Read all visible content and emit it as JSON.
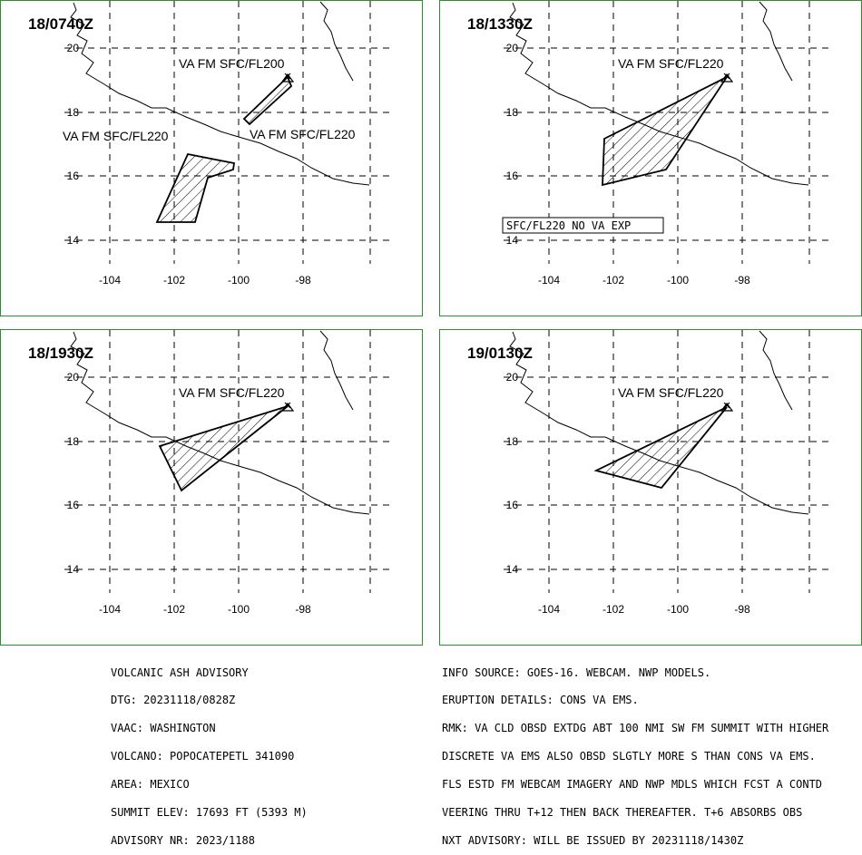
{
  "panels": [
    {
      "time": "18/0740Z",
      "labels": [
        "VA FM SFC/FL200",
        "VA FM SFC/FL220",
        "VA FM SFC/FL220"
      ],
      "boxed_label": ""
    },
    {
      "time": "18/1330Z",
      "labels": [
        "VA FM SFC/FL220"
      ],
      "boxed_label": "SFC/FL220 NO VA EXP"
    },
    {
      "time": "18/1930Z",
      "labels": [
        "VA FM SFC/FL220"
      ],
      "boxed_label": ""
    },
    {
      "time": "19/0130Z",
      "labels": [
        "VA FM SFC/FL220"
      ],
      "boxed_label": ""
    }
  ],
  "axes": {
    "lon_ticks": [
      "-104",
      "-102",
      "-100",
      "-98"
    ],
    "lat_ticks": [
      "20",
      "18",
      "16",
      "14"
    ]
  },
  "advisory_left": [
    "VOLCANIC ASH ADVISORY",
    "DTG: 20231118/0828Z",
    "VAAC: WASHINGTON",
    "VOLCANO: POPOCATEPETL 341090",
    "AREA: MEXICO",
    "SUMMIT ELEV: 17693 FT (5393 M)",
    "ADVISORY NR: 2023/1188"
  ],
  "advisory_right": [
    "INFO SOURCE: GOES-16. WEBCAM. NWP MODELS.",
    "ERUPTION DETAILS: CONS VA EMS.",
    "RMK: VA CLD OBSD EXTDG ABT 100 NMI SW FM SUMMIT WITH HIGHER",
    "DISCRETE VA EMS ALSO OBSD SLGTLY MORE S THAN CONS VA EMS.",
    "FLS ESTD FM WEBCAM IMAGERY AND NWP MDLS WHICH FCST A CONTD",
    "VEERING THRU T+12 THEN BACK THEREAFTER. T+6 ABSORBS OBS",
    "NXT ADVISORY: WILL BE ISSUED BY 20231118/1430Z"
  ],
  "colors": {
    "panel_border": "#2e8b2e",
    "lines": "#000000"
  }
}
